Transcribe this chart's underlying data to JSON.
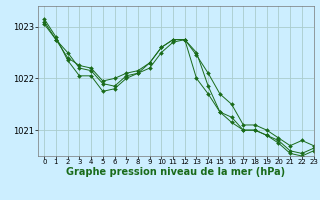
{
  "background_color": "#cceeff",
  "grid_color": "#aacccc",
  "line_color": "#1a6b1a",
  "marker_color": "#1a6b1a",
  "xlabel": "Graphe pression niveau de la mer (hPa)",
  "xlabel_fontsize": 7,
  "xlim": [
    -0.5,
    23
  ],
  "ylim": [
    1020.5,
    1023.4
  ],
  "yticks": [
    1021,
    1022,
    1023
  ],
  "xticks": [
    0,
    1,
    2,
    3,
    4,
    5,
    6,
    7,
    8,
    9,
    10,
    11,
    12,
    13,
    14,
    15,
    16,
    17,
    18,
    19,
    20,
    21,
    22,
    23
  ],
  "series1_x": [
    0,
    1,
    2,
    3,
    4,
    5,
    6,
    7,
    8,
    9,
    10,
    11,
    12,
    13,
    14,
    15,
    16,
    17,
    18,
    19,
    20,
    21,
    22,
    23
  ],
  "series1_y": [
    1023.1,
    1022.75,
    1022.5,
    1022.2,
    1022.15,
    1021.9,
    1021.85,
    1022.05,
    1022.1,
    1022.3,
    1022.6,
    1022.75,
    1022.75,
    1022.45,
    1022.1,
    1021.7,
    1021.5,
    1021.1,
    1021.1,
    1021.0,
    1020.85,
    1020.7,
    1020.8,
    1020.7
  ],
  "series2_x": [
    0,
    1,
    2,
    3,
    4,
    5,
    6,
    7,
    8,
    9,
    10,
    11,
    12,
    13,
    14,
    15,
    16,
    17,
    18,
    19,
    20,
    21,
    22,
    23
  ],
  "series2_y": [
    1023.05,
    1022.75,
    1022.4,
    1022.25,
    1022.2,
    1021.95,
    1022.0,
    1022.1,
    1022.15,
    1022.3,
    1022.6,
    1022.75,
    1022.75,
    1022.0,
    1021.7,
    1021.35,
    1021.15,
    1021.0,
    1021.0,
    1020.9,
    1020.8,
    1020.6,
    1020.55,
    1020.65
  ],
  "series3_x": [
    0,
    1,
    2,
    3,
    4,
    5,
    6,
    7,
    8,
    9,
    10,
    11,
    12,
    13,
    14,
    15,
    16,
    17,
    18,
    19,
    20,
    21,
    22,
    23
  ],
  "series3_y": [
    1023.15,
    1022.8,
    1022.35,
    1022.05,
    1022.05,
    1021.75,
    1021.8,
    1022.0,
    1022.1,
    1022.2,
    1022.5,
    1022.7,
    1022.75,
    1022.5,
    1021.85,
    1021.35,
    1021.25,
    1021.0,
    1021.0,
    1020.9,
    1020.75,
    1020.55,
    1020.5,
    1020.6
  ]
}
